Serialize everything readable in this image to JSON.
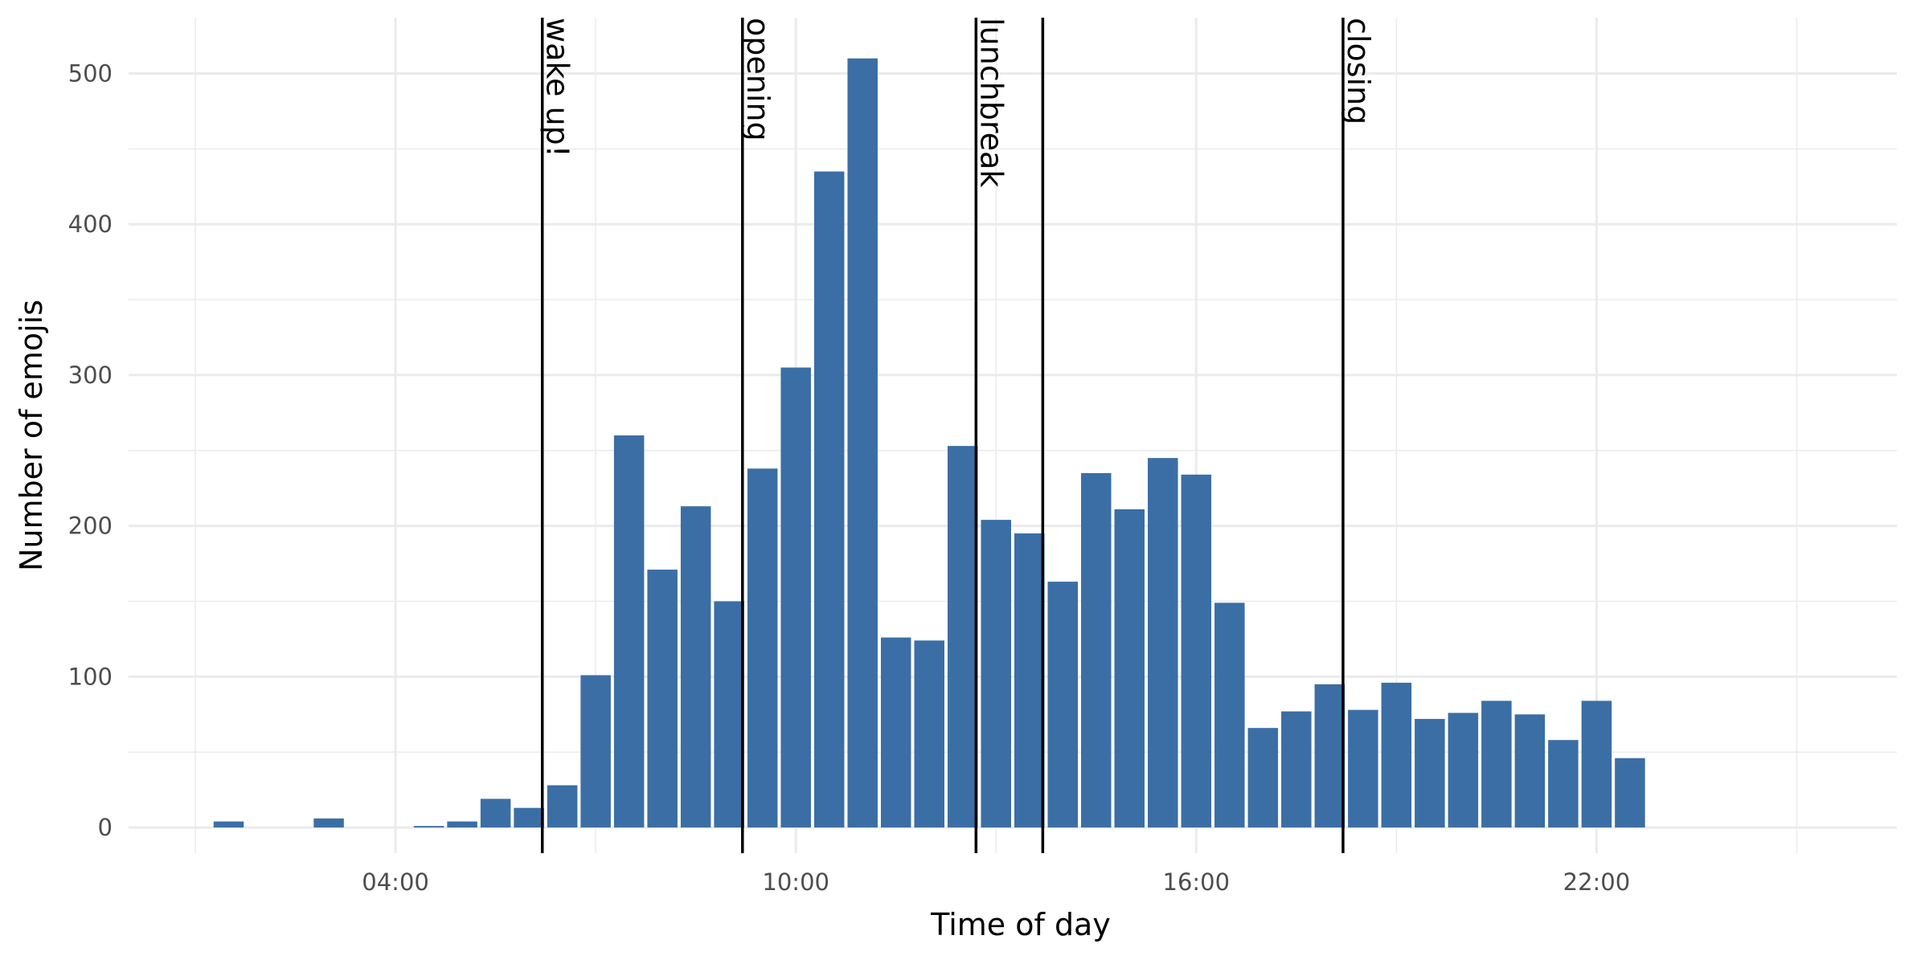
{
  "chart_data": {
    "type": "bar",
    "title": "",
    "xlabel": "Time of day",
    "ylabel": "Number of emojis",
    "x_unit": "hours",
    "xlim": [
      0,
      26.5
    ],
    "ylim": [
      -17,
      537
    ],
    "x_ticks": [
      {
        "value": 4,
        "label": "04:00"
      },
      {
        "value": 10,
        "label": "10:00"
      },
      {
        "value": 16,
        "label": "16:00"
      },
      {
        "value": 22,
        "label": "22:00"
      }
    ],
    "x_minor_ticks": [
      1,
      7,
      13,
      19,
      25
    ],
    "y_ticks": [
      {
        "value": 0,
        "label": "0"
      },
      {
        "value": 100,
        "label": "100"
      },
      {
        "value": 200,
        "label": "200"
      },
      {
        "value": 300,
        "label": "300"
      },
      {
        "value": 400,
        "label": "400"
      },
      {
        "value": 500,
        "label": "500"
      }
    ],
    "y_minor_ticks": [
      50,
      150,
      250,
      350,
      450
    ],
    "bin_width": 0.5,
    "x": [
      0.5,
      1.0,
      1.5,
      2.0,
      2.5,
      3.0,
      3.5,
      4.0,
      4.5,
      5.0,
      5.5,
      6.0,
      6.5,
      7.0,
      7.5,
      8.0,
      8.5,
      9.0,
      9.5,
      10.0,
      10.5,
      11.0,
      11.5,
      12.0,
      12.5,
      13.0,
      13.5,
      14.0,
      14.5,
      15.0,
      15.5,
      16.0,
      16.5,
      17.0,
      17.5,
      18.0,
      18.5,
      19.0,
      19.5,
      20.0,
      20.5,
      21.0,
      21.5,
      22.0,
      22.5,
      23.0,
      23.5,
      24.0,
      24.5,
      25.0,
      25.5,
      26.0
    ],
    "values": [
      0,
      0,
      4,
      0,
      0,
      6,
      0,
      0,
      1,
      4,
      19,
      13,
      28,
      101,
      260,
      171,
      213,
      150,
      238,
      305,
      435,
      510,
      126,
      124,
      253,
      204,
      195,
      163,
      235,
      211,
      245,
      234,
      149,
      66,
      77,
      95,
      78,
      96,
      72,
      76,
      84,
      75,
      58,
      84,
      46,
      0,
      0,
      0,
      0,
      0,
      0,
      0
    ],
    "bar_color": "#3a6ea5",
    "annotations": [
      {
        "x": 6.2,
        "label": "wake up!"
      },
      {
        "x": 9.2,
        "label": "opening"
      },
      {
        "x": 12.7,
        "label": "lunchbreak"
      },
      {
        "x": 13.7,
        "label": ""
      },
      {
        "x": 18.2,
        "label": "closing"
      }
    ],
    "grid": true,
    "legend": "none"
  }
}
